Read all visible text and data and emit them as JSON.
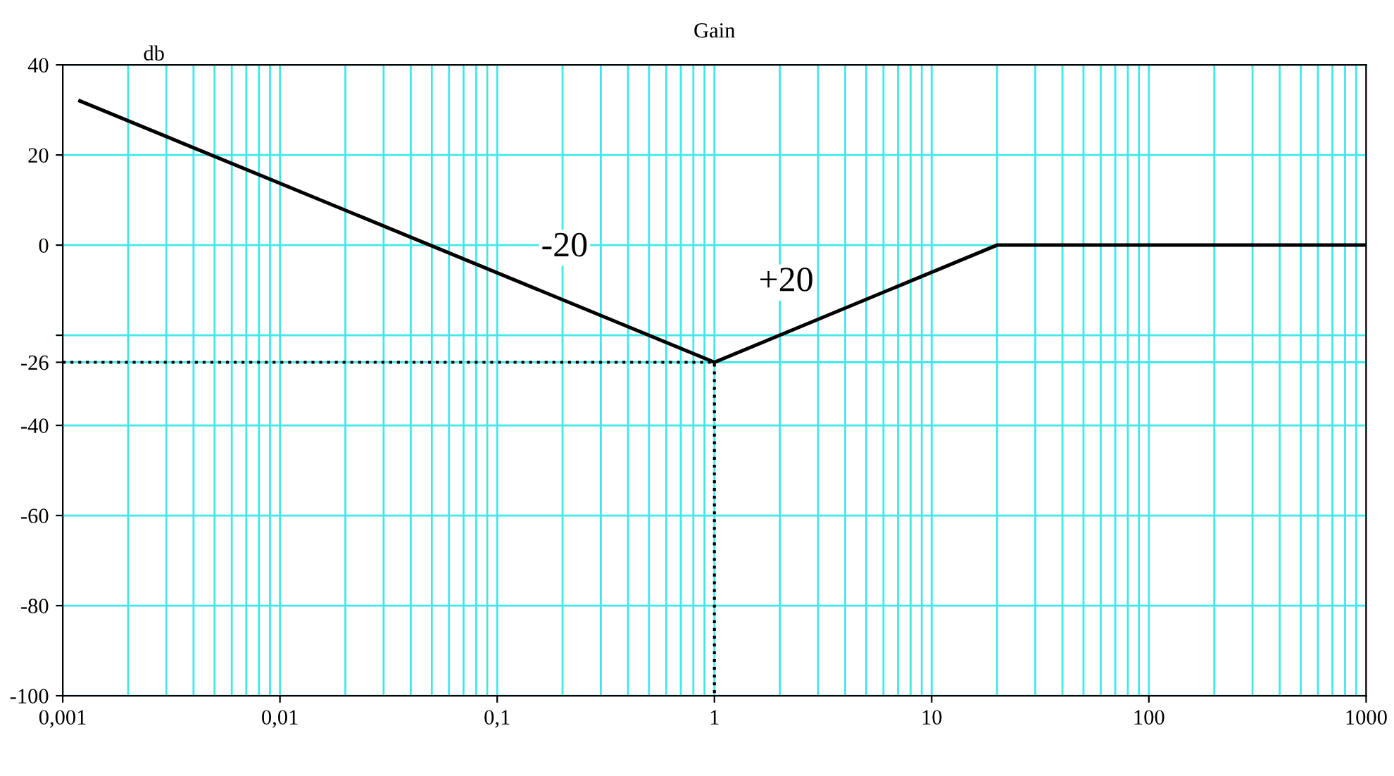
{
  "chart_data": {
    "type": "line",
    "title": "Gain",
    "ylabel": "db",
    "log": "x",
    "xlim": [
      0.001,
      1000
    ],
    "ylim": [
      -100,
      40
    ],
    "xticks": [
      {
        "value": 0.001,
        "label": "0,001"
      },
      {
        "value": 0.01,
        "label": "0,01"
      },
      {
        "value": 0.1,
        "label": "0,1"
      },
      1,
      10,
      100,
      1000
    ],
    "yticks": [
      40,
      20,
      0,
      {
        "value": -20,
        "label": null
      },
      -26,
      -40,
      -60,
      -80,
      -100
    ],
    "grid": true,
    "legend": false,
    "series": [
      {
        "color": "#000000",
        "x": [
          0.0012,
          1,
          20,
          1000
        ],
        "values": [
          32,
          -26,
          0,
          0
        ],
        "line_style": "solid"
      },
      {
        "color": "#000000",
        "x": [
          0.001,
          1,
          1
        ],
        "values": [
          -26,
          -26,
          -100
        ],
        "line_style": "dotted"
      }
    ],
    "annotations": [
      "-20",
      "+20"
    ]
  }
}
